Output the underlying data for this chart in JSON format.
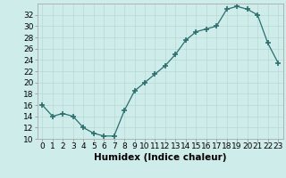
{
  "x": [
    0,
    1,
    2,
    3,
    4,
    5,
    6,
    7,
    8,
    9,
    10,
    11,
    12,
    13,
    14,
    15,
    16,
    17,
    18,
    19,
    20,
    21,
    22,
    23
  ],
  "y": [
    16,
    14,
    14.5,
    14,
    12,
    11,
    10.5,
    10.5,
    15,
    18.5,
    20,
    21.5,
    23,
    25,
    27.5,
    29,
    29.5,
    30,
    33,
    33.5,
    33,
    32,
    27,
    23.5
  ],
  "xlabel": "Humidex (Indice chaleur)",
  "xlim": [
    -0.5,
    23.5
  ],
  "ylim": [
    10,
    34
  ],
  "yticks": [
    10,
    12,
    14,
    16,
    18,
    20,
    22,
    24,
    26,
    28,
    30,
    32
  ],
  "xticks": [
    0,
    1,
    2,
    3,
    4,
    5,
    6,
    7,
    8,
    9,
    10,
    11,
    12,
    13,
    14,
    15,
    16,
    17,
    18,
    19,
    20,
    21,
    22,
    23
  ],
  "line_color": "#2d6e6e",
  "marker_color": "#2d6e6e",
  "bg_color": "#ceecea",
  "grid_color_major": "#b8d8d4",
  "grid_color_minor": "#cce8e4",
  "xlabel_fontsize": 7.5,
  "tick_fontsize": 6.5
}
